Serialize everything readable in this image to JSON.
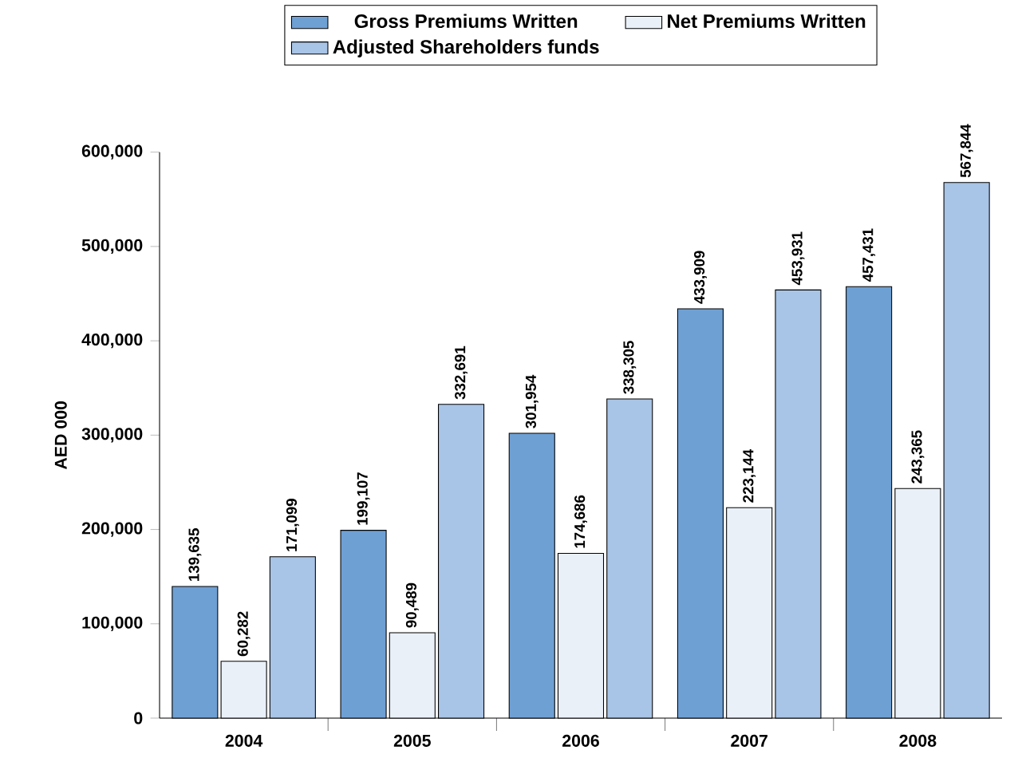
{
  "chart_data": {
    "type": "bar",
    "ylabel": "AED 000",
    "categories": [
      "2004",
      "2005",
      "2006",
      "2007",
      "2008"
    ],
    "ylim": [
      0,
      600000
    ],
    "yticks": [
      {
        "value": 0,
        "label": "0"
      },
      {
        "value": 100000,
        "label": "100,000"
      },
      {
        "value": 200000,
        "label": "200,000"
      },
      {
        "value": 300000,
        "label": "300,000"
      },
      {
        "value": 400000,
        "label": "400,000"
      },
      {
        "value": 500000,
        "label": "500,000"
      },
      {
        "value": 600000,
        "label": "600,000"
      }
    ],
    "legend": "top",
    "grid": false,
    "series": [
      {
        "name": "Gross Premiums Written",
        "color": "#6fa0d4",
        "values": [
          139635,
          199107,
          301954,
          433909,
          457431
        ],
        "value_labels": [
          "139,635",
          "199,107",
          "301,954",
          "433,909",
          "457,431"
        ]
      },
      {
        "name": "Net Premiums Written",
        "color": "#e9f0f8",
        "values": [
          60282,
          90489,
          174686,
          223144,
          243365
        ],
        "value_labels": [
          "60,282",
          "90,489",
          "174,686",
          "223,144",
          "243,365"
        ]
      },
      {
        "name": "Adjusted Shareholders funds",
        "color": "#a8c4e6",
        "values": [
          171099,
          332691,
          338305,
          453931,
          567844
        ],
        "value_labels": [
          "171,099",
          "332,691",
          "338,305",
          "453,931",
          "567,844"
        ]
      }
    ]
  }
}
